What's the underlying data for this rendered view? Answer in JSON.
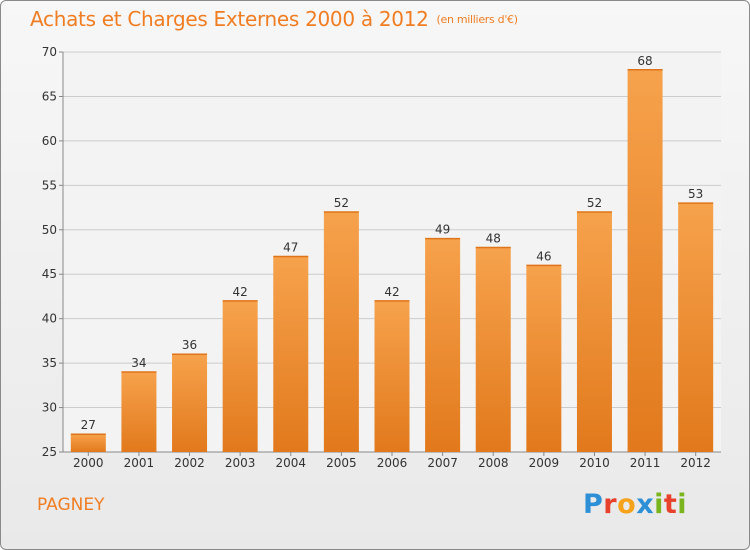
{
  "header": {
    "title": "Achats et Charges Externes 2000 à 2012",
    "unit": "(en milliers d'€)"
  },
  "footer": {
    "commune": "PAGNEY",
    "logo_text": "Proxiti",
    "logo_letters": [
      {
        "ch": "P",
        "color": "#2d8fd5"
      },
      {
        "ch": "r",
        "color": "#e8412c"
      },
      {
        "ch": "o",
        "color": "#f6a21a"
      },
      {
        "ch": "x",
        "color": "#2d8fd5"
      },
      {
        "ch": "i",
        "color": "#7ab51d"
      },
      {
        "ch": "t",
        "color": "#e8412c"
      },
      {
        "ch": "i",
        "color": "#7ab51d"
      }
    ]
  },
  "colors": {
    "bar_top": "#f6a24c",
    "bar_bottom": "#e2791c",
    "title": "#f07d22",
    "grid": "#cccccc",
    "axis_text": "#333333"
  },
  "chart_data": {
    "type": "bar",
    "title": "Achats et Charges Externes 2000 à 2012",
    "subtitle": "(en milliers d'€)",
    "xlabel": "",
    "ylabel": "",
    "categories": [
      "2000",
      "2001",
      "2002",
      "2003",
      "2004",
      "2005",
      "2006",
      "2007",
      "2008",
      "2009",
      "2010",
      "2011",
      "2012"
    ],
    "values": [
      27,
      34,
      36,
      42,
      47,
      52,
      42,
      49,
      48,
      46,
      52,
      68,
      53
    ],
    "ylim": [
      25,
      70
    ],
    "yticks": [
      25,
      30,
      35,
      40,
      45,
      50,
      55,
      60,
      65,
      70
    ],
    "grid": true,
    "legend": "none"
  }
}
